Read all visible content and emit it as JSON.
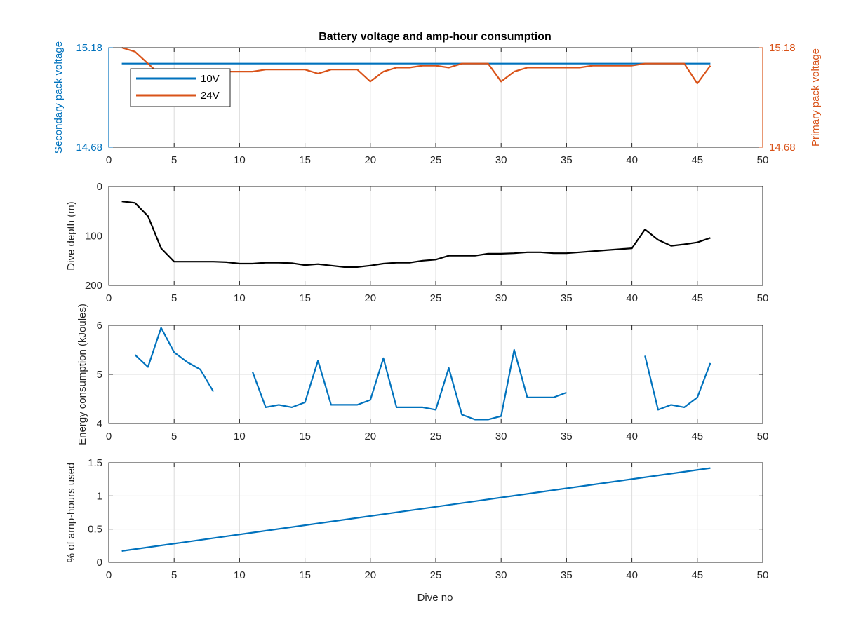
{
  "figure": {
    "title": "Battery voltage and amp-hour consumption",
    "xlabel": "Dive no"
  },
  "colors": {
    "blue": "#0072BD",
    "orange": "#D95319",
    "black": "#000000",
    "axis": "#262626",
    "grid": "#dcdcdc",
    "secondary_label": "#0072BD",
    "primary_label": "#D95319"
  },
  "chart_data": [
    {
      "type": "line",
      "title": "Battery voltage and amp-hour consumption",
      "xlim": [
        0,
        50
      ],
      "xticks": [
        0,
        5,
        10,
        15,
        20,
        25,
        30,
        35,
        40,
        45,
        50
      ],
      "ylabel_left": "Secondary pack voltage",
      "ylabel_right": "Primary pack voltage",
      "ylim_left": [
        14.68,
        15.18
      ],
      "ylim_right": [
        14.68,
        15.18
      ],
      "yticks_left": [
        "14.68",
        "15.18"
      ],
      "yticks_right": [
        "14.68",
        "15.18"
      ],
      "grid": true,
      "legend_position": "top-left",
      "series": [
        {
          "name": "10V",
          "axis": "left",
          "color": "#0072BD",
          "x": [
            1,
            46
          ],
          "y": [
            15.1,
            15.1
          ]
        },
        {
          "name": "24V",
          "axis": "right",
          "color": "#D95319",
          "x": [
            1,
            2,
            3,
            4,
            5,
            6,
            7,
            8,
            9,
            10,
            11,
            12,
            13,
            14,
            15,
            16,
            17,
            18,
            19,
            20,
            21,
            22,
            23,
            24,
            25,
            26,
            27,
            28,
            29,
            30,
            31,
            32,
            33,
            34,
            35,
            36,
            37,
            38,
            39,
            40,
            41,
            42,
            43,
            44,
            45,
            46
          ],
          "y": [
            15.18,
            15.16,
            15.1,
            15.04,
            14.9,
            14.89,
            15.04,
            15.06,
            15.06,
            15.06,
            15.06,
            15.07,
            15.07,
            15.07,
            15.07,
            15.05,
            15.07,
            15.07,
            15.07,
            15.01,
            15.06,
            15.08,
            15.08,
            15.09,
            15.09,
            15.08,
            15.1,
            15.1,
            15.1,
            15.01,
            15.06,
            15.08,
            15.08,
            15.08,
            15.08,
            15.08,
            15.09,
            15.09,
            15.09,
            15.09,
            15.1,
            15.1,
            15.1,
            15.1,
            15.0,
            15.09
          ]
        }
      ]
    },
    {
      "type": "line",
      "xlim": [
        0,
        50
      ],
      "xticks": [
        0,
        5,
        10,
        15,
        20,
        25,
        30,
        35,
        40,
        45,
        50
      ],
      "ylabel": "Dive depth (m)",
      "ylim": [
        0,
        200
      ],
      "yticks": [
        0,
        100,
        200
      ],
      "y_reversed": true,
      "grid": true,
      "series": [
        {
          "color": "#000000",
          "x": [
            1,
            2,
            3,
            4,
            5,
            6,
            7,
            8,
            9,
            10,
            11,
            12,
            13,
            14,
            15,
            16,
            17,
            18,
            19,
            20,
            21,
            22,
            23,
            24,
            25,
            26,
            27,
            28,
            29,
            30,
            31,
            32,
            33,
            34,
            35,
            36,
            37,
            38,
            39,
            40,
            41,
            42,
            43,
            44,
            45,
            46
          ],
          "y": [
            30,
            33,
            60,
            125,
            152,
            152,
            152,
            152,
            153,
            156,
            156,
            154,
            154,
            155,
            159,
            157,
            160,
            163,
            163,
            160,
            156,
            154,
            154,
            150,
            148,
            140,
            140,
            140,
            136,
            136,
            135,
            133,
            133,
            135,
            135,
            133,
            131,
            129,
            127,
            125,
            87,
            108,
            120,
            117,
            113,
            104
          ]
        }
      ]
    },
    {
      "type": "line",
      "xlim": [
        0,
        50
      ],
      "xticks": [
        0,
        5,
        10,
        15,
        20,
        25,
        30,
        35,
        40,
        45,
        50
      ],
      "ylabel": "Energy consumption (kJoules)",
      "ylim": [
        4,
        6
      ],
      "yticks": [
        4,
        5,
        6
      ],
      "grid": true,
      "series": [
        {
          "color": "#0072BD",
          "segments": [
            {
              "x": [
                2,
                3,
                4,
                5,
                6,
                7,
                8
              ],
              "y": [
                5.4,
                5.15,
                5.95,
                5.45,
                5.25,
                5.1,
                4.65
              ]
            },
            {
              "x": [
                11,
                12,
                13,
                14,
                15,
                16,
                17,
                18,
                19,
                20,
                21,
                22,
                23,
                24,
                25,
                26,
                27,
                28,
                29,
                30,
                31,
                32,
                33,
                34,
                35
              ],
              "y": [
                5.05,
                4.33,
                4.38,
                4.33,
                4.43,
                5.28,
                4.38,
                4.38,
                4.38,
                4.48,
                5.33,
                4.33,
                4.33,
                4.33,
                4.28,
                5.13,
                4.18,
                4.08,
                4.08,
                4.15,
                5.5,
                4.53,
                4.53,
                4.53,
                4.63
              ]
            },
            {
              "x": [
                41,
                42,
                43,
                44,
                45,
                46
              ],
              "y": [
                5.38,
                4.28,
                4.38,
                4.33,
                4.53,
                5.23
              ]
            }
          ]
        }
      ]
    },
    {
      "type": "line",
      "xlim": [
        0,
        50
      ],
      "xticks": [
        0,
        5,
        10,
        15,
        20,
        25,
        30,
        35,
        40,
        45,
        50
      ],
      "xlabel": "Dive no",
      "ylabel": "% of amp-hours used",
      "ylim": [
        0,
        1.5
      ],
      "yticks": [
        0,
        0.5,
        1,
        1.5
      ],
      "ytick_labels": [
        "0",
        "0.5",
        "1",
        "1.5"
      ],
      "grid": true,
      "series": [
        {
          "color": "#0072BD",
          "x": [
            1,
            46
          ],
          "y": [
            0.17,
            1.42
          ]
        }
      ]
    }
  ]
}
